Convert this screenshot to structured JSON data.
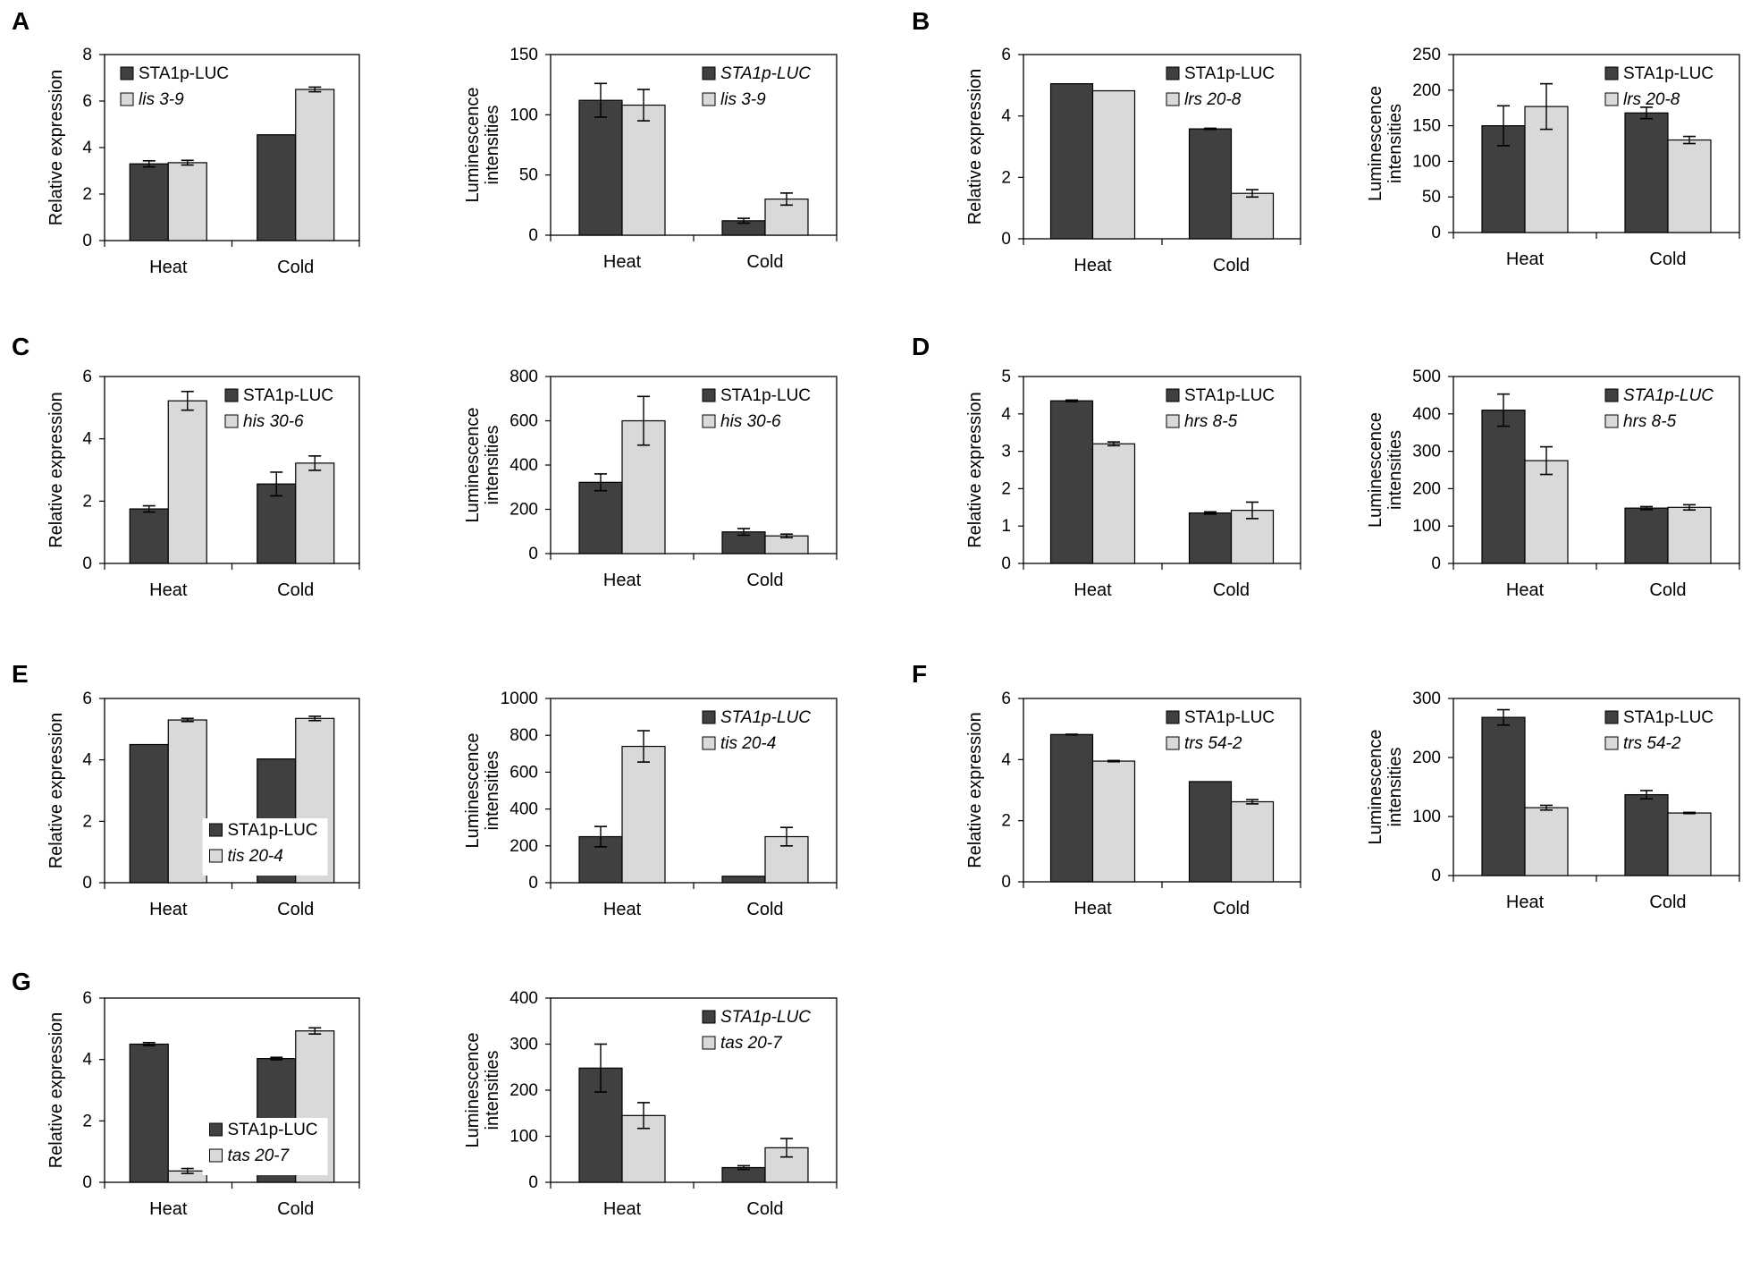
{
  "colors": {
    "series1": "#404040",
    "series2": "#d9d9d9",
    "stroke": "#000000"
  },
  "panels": [
    {
      "letter": "A"
    },
    {
      "letter": "B"
    },
    {
      "letter": "C"
    },
    {
      "letter": "D"
    },
    {
      "letter": "E"
    },
    {
      "letter": "F"
    },
    {
      "letter": "G"
    }
  ],
  "chart_data": [
    {
      "id": "A1",
      "type": "bar",
      "ylabel": "Relative expression",
      "categories": [
        "Heat",
        "Cold"
      ],
      "yticks": [
        "0",
        "2",
        "4",
        "6",
        "8"
      ],
      "ylim": [
        0,
        8
      ],
      "legend": "top-left",
      "series": [
        {
          "name": "STA1p-LUC",
          "italic": false,
          "values": [
            3.3,
            4.55
          ],
          "errors": [
            0.13,
            null
          ]
        },
        {
          "name": "lis 3-9",
          "italic": true,
          "values": [
            3.35,
            6.5
          ],
          "errors": [
            0.1,
            0.1
          ]
        }
      ]
    },
    {
      "id": "A2",
      "type": "bar",
      "ylabel": [
        "Luminescence",
        "intensities"
      ],
      "categories": [
        "Heat",
        "Cold"
      ],
      "yticks": [
        "0",
        "50",
        "100",
        "150"
      ],
      "ylim": [
        0,
        150
      ],
      "legend": "top-right",
      "series": [
        {
          "name": "STA1p-LUC",
          "italic": true,
          "values": [
            112,
            12
          ],
          "errors": [
            14,
            2
          ]
        },
        {
          "name": "lis 3-9",
          "italic": true,
          "values": [
            108,
            30
          ],
          "errors": [
            13,
            5
          ]
        }
      ]
    },
    {
      "id": "B1",
      "type": "bar",
      "ylabel": "Relative expression",
      "categories": [
        "Heat",
        "Cold"
      ],
      "yticks": [
        "0",
        "2",
        "4",
        "6"
      ],
      "ylim": [
        0,
        6
      ],
      "legend": "top-right",
      "series": [
        {
          "name": "STA1p-LUC",
          "italic": false,
          "values": [
            5.05,
            3.58
          ],
          "errors": [
            null,
            0.02
          ]
        },
        {
          "name": "lrs 20-8",
          "italic": true,
          "values": [
            4.82,
            1.48
          ],
          "errors": [
            null,
            0.12
          ]
        }
      ]
    },
    {
      "id": "B2",
      "type": "bar",
      "ylabel": [
        "Luminescence",
        "intensities"
      ],
      "categories": [
        "Heat",
        "Cold"
      ],
      "yticks": [
        "0",
        "50",
        "100",
        "150",
        "200",
        "250"
      ],
      "ylim": [
        0,
        250
      ],
      "legend": "top-right",
      "series": [
        {
          "name": "STA1p-LUC",
          "italic": false,
          "values": [
            150,
            168
          ],
          "errors": [
            28,
            8
          ]
        },
        {
          "name": "lrs 20-8",
          "italic": true,
          "values": [
            177,
            130
          ],
          "errors": [
            32,
            5
          ]
        }
      ]
    },
    {
      "id": "C1",
      "type": "bar",
      "ylabel": "Relative expression",
      "categories": [
        "Heat",
        "Cold"
      ],
      "yticks": [
        "0",
        "2",
        "4",
        "6"
      ],
      "ylim": [
        0,
        6
      ],
      "legend": "top-right",
      "series": [
        {
          "name": "STA1p-LUC",
          "italic": false,
          "values": [
            1.75,
            2.55
          ],
          "errors": [
            0.1,
            0.38
          ]
        },
        {
          "name": "his 30-6",
          "italic": true,
          "values": [
            5.22,
            3.22
          ],
          "errors": [
            0.3,
            0.23
          ]
        }
      ]
    },
    {
      "id": "C2",
      "type": "bar",
      "ylabel": [
        "Luminescence",
        "intensities"
      ],
      "categories": [
        "Heat",
        "Cold"
      ],
      "yticks": [
        "0",
        "200",
        "400",
        "600",
        "800"
      ],
      "ylim": [
        0,
        800
      ],
      "legend": "top-right",
      "series": [
        {
          "name": "STA1p-LUC",
          "italic": false,
          "values": [
            322,
            98
          ],
          "errors": [
            38,
            15
          ]
        },
        {
          "name": "his 30-6",
          "italic": true,
          "values": [
            600,
            80
          ],
          "errors": [
            110,
            8
          ]
        }
      ]
    },
    {
      "id": "D1",
      "type": "bar",
      "ylabel": "Relative expression",
      "categories": [
        "Heat",
        "Cold"
      ],
      "yticks": [
        "0",
        "1",
        "2",
        "3",
        "4",
        "5"
      ],
      "ylim": [
        0,
        5
      ],
      "legend": "top-right",
      "series": [
        {
          "name": "STA1p-LUC",
          "italic": false,
          "values": [
            4.35,
            1.35
          ],
          "errors": [
            0.02,
            0.03
          ]
        },
        {
          "name": "hrs 8-5",
          "italic": true,
          "values": [
            3.2,
            1.42
          ],
          "errors": [
            0.05,
            0.22
          ]
        }
      ]
    },
    {
      "id": "D2",
      "type": "bar",
      "ylabel": [
        "Luminescence",
        "intensities"
      ],
      "categories": [
        "Heat",
        "Cold"
      ],
      "yticks": [
        "0",
        "100",
        "200",
        "300",
        "400",
        "500"
      ],
      "ylim": [
        0,
        500
      ],
      "legend": "top-right",
      "series": [
        {
          "name": "STA1p-LUC",
          "italic": true,
          "values": [
            410,
            148
          ],
          "errors": [
            43,
            4
          ]
        },
        {
          "name": "hrs 8-5",
          "italic": true,
          "values": [
            275,
            150
          ],
          "errors": [
            37,
            7
          ]
        }
      ]
    },
    {
      "id": "E1",
      "type": "bar",
      "ylabel": "Relative expression",
      "categories": [
        "Heat",
        "Cold"
      ],
      "yticks": [
        "0",
        "2",
        "4",
        "6"
      ],
      "ylim": [
        0,
        6
      ],
      "legend": "bottom-center",
      "series": [
        {
          "name": "STA1p-LUC",
          "italic": false,
          "values": [
            4.5,
            4.03
          ],
          "errors": [
            null,
            null
          ]
        },
        {
          "name": "tis 20-4",
          "italic": true,
          "values": [
            5.3,
            5.35
          ],
          "errors": [
            0.05,
            0.07
          ]
        }
      ]
    },
    {
      "id": "E2",
      "type": "bar",
      "ylabel": [
        "Luminescence",
        "intensities"
      ],
      "categories": [
        "Heat",
        "Cold"
      ],
      "yticks": [
        "0",
        "200",
        "400",
        "600",
        "800",
        "1000"
      ],
      "ylim": [
        0,
        1000
      ],
      "legend": "top-right",
      "series": [
        {
          "name": "STA1p-LUC",
          "italic": true,
          "values": [
            250,
            35
          ],
          "errors": [
            55,
            null
          ]
        },
        {
          "name": "tis 20-4",
          "italic": true,
          "values": [
            740,
            250
          ],
          "errors": [
            85,
            50
          ]
        }
      ]
    },
    {
      "id": "F1",
      "type": "bar",
      "ylabel": "Relative expression",
      "categories": [
        "Heat",
        "Cold"
      ],
      "yticks": [
        "0",
        "2",
        "4",
        "6"
      ],
      "ylim": [
        0,
        6
      ],
      "legend": "top-right",
      "series": [
        {
          "name": "STA1p-LUC",
          "italic": false,
          "values": [
            4.82,
            3.28
          ],
          "errors": [
            0.01,
            null
          ]
        },
        {
          "name": "trs 54-2",
          "italic": true,
          "values": [
            3.95,
            2.62
          ],
          "errors": [
            0.02,
            0.07
          ]
        }
      ]
    },
    {
      "id": "F2",
      "type": "bar",
      "ylabel": [
        "Luminescence",
        "intensities"
      ],
      "categories": [
        "Heat",
        "Cold"
      ],
      "yticks": [
        "0",
        "100",
        "200",
        "300"
      ],
      "ylim": [
        0,
        300
      ],
      "legend": "top-right",
      "series": [
        {
          "name": "STA1p-LUC",
          "italic": false,
          "values": [
            268,
            137
          ],
          "errors": [
            13,
            7
          ]
        },
        {
          "name": "trs 54-2",
          "italic": true,
          "values": [
            115,
            106
          ],
          "errors": [
            4,
            1
          ]
        }
      ]
    },
    {
      "id": "G1",
      "type": "bar",
      "ylabel": "Relative expression",
      "categories": [
        "Heat",
        "Cold"
      ],
      "yticks": [
        "0",
        "2",
        "4",
        "6"
      ],
      "ylim": [
        0,
        6
      ],
      "legend": "bottom-center",
      "series": [
        {
          "name": "STA1p-LUC",
          "italic": false,
          "values": [
            4.5,
            4.03
          ],
          "errors": [
            0.05,
            0.04
          ]
        },
        {
          "name": "tas 20-7",
          "italic": true,
          "values": [
            0.37,
            4.93
          ],
          "errors": [
            0.08,
            0.1
          ]
        }
      ]
    },
    {
      "id": "G2",
      "type": "bar",
      "ylabel": [
        "Luminescence",
        "intensities"
      ],
      "categories": [
        "Heat",
        "Cold"
      ],
      "yticks": [
        "0",
        "100",
        "200",
        "300",
        "400"
      ],
      "ylim": [
        0,
        400
      ],
      "legend": "top-right",
      "series": [
        {
          "name": "STA1p-LUC",
          "italic": true,
          "values": [
            248,
            32
          ],
          "errors": [
            52,
            4
          ]
        },
        {
          "name": "tas 20-7",
          "italic": true,
          "values": [
            145,
            75
          ],
          "errors": [
            28,
            20
          ]
        }
      ]
    }
  ]
}
